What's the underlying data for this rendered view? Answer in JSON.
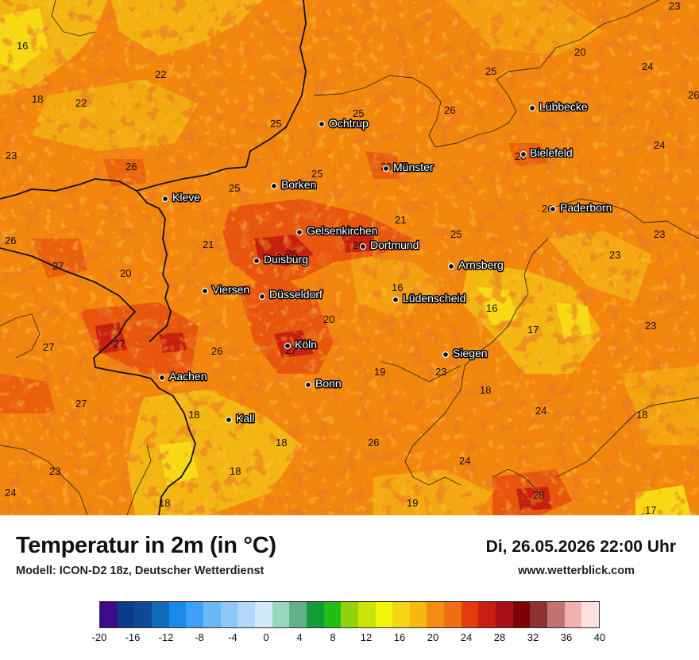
{
  "map": {
    "cities": [
      {
        "name": "Ochtrup",
        "key": "ochtrup"
      },
      {
        "name": "Münster",
        "key": "muenster"
      },
      {
        "name": "Lübbecke",
        "key": "luebbecke"
      },
      {
        "name": "Bielefeld",
        "key": "bielefeld"
      },
      {
        "name": "Kleve",
        "key": "kleve"
      },
      {
        "name": "Borken",
        "key": "borken"
      },
      {
        "name": "Paderborn",
        "key": "paderborn"
      },
      {
        "name": "Gelsenkirchen",
        "key": "gelsenkirchen"
      },
      {
        "name": "Dortmund",
        "key": "dortmund"
      },
      {
        "name": "Duisburg",
        "key": "duisburg"
      },
      {
        "name": "Arnsberg",
        "key": "arnsberg"
      },
      {
        "name": "Viersen",
        "key": "viersen"
      },
      {
        "name": "Düsseldorf",
        "key": "duesseldorf"
      },
      {
        "name": "Lüdenscheid",
        "key": "luedenscheid"
      },
      {
        "name": "Köln",
        "key": "koeln"
      },
      {
        "name": "Siegen",
        "key": "siegen"
      },
      {
        "name": "Aachen",
        "key": "aachen"
      },
      {
        "name": "Bonn",
        "key": "bonn"
      },
      {
        "name": "Kall",
        "key": "kall"
      }
    ],
    "temperature_labels": [
      "23",
      "16",
      "20",
      "24",
      "22",
      "25",
      "18",
      "22",
      "26",
      "25",
      "25",
      "26",
      "23",
      "26",
      "28",
      "24",
      "25",
      "25",
      "26",
      "21",
      "26",
      "21",
      "26",
      "25",
      "23",
      "27",
      "20",
      "26",
      "28",
      "23",
      "16",
      "16",
      "20",
      "17",
      "27",
      "27",
      "26",
      "27",
      "23",
      "19",
      "23",
      "18",
      "27",
      "18",
      "18",
      "24",
      "18",
      "26",
      "24",
      "23",
      "18",
      "28",
      "19",
      "17",
      "24"
    ]
  },
  "footer": {
    "title": "Temperatur in 2m (in °C)",
    "model": "Modell: ICON-D2 18z, Deutscher Wetterdienst",
    "datetime": "Di, 26.05.2026 22:00 Uhr",
    "website": "www.wetterblick.com"
  },
  "legend": {
    "unit": "°C",
    "ticks": [
      "-20",
      "-16",
      "-12",
      "-8",
      "-4",
      "0",
      "4",
      "8",
      "12",
      "16",
      "20",
      "24",
      "28",
      "32",
      "36",
      "40"
    ],
    "colors": [
      "#3d0a8c",
      "#0a3c88",
      "#0d4a93",
      "#0f6cbd",
      "#1a8ae8",
      "#3ea0f2",
      "#6bb8f6",
      "#8cc7f8",
      "#b1d8fb",
      "#d5e9fd",
      "#97d9bd",
      "#62b08a",
      "#149c3a",
      "#22bd16",
      "#93d30c",
      "#cbe40a",
      "#f2f50a",
      "#f3d513",
      "#f4b811",
      "#f48c10",
      "#ef6f15",
      "#e63c0c",
      "#c81e13",
      "#aa0f18",
      "#7d0206",
      "#8a3332",
      "#c27472",
      "#f1b1ae",
      "#fde0df"
    ]
  }
}
